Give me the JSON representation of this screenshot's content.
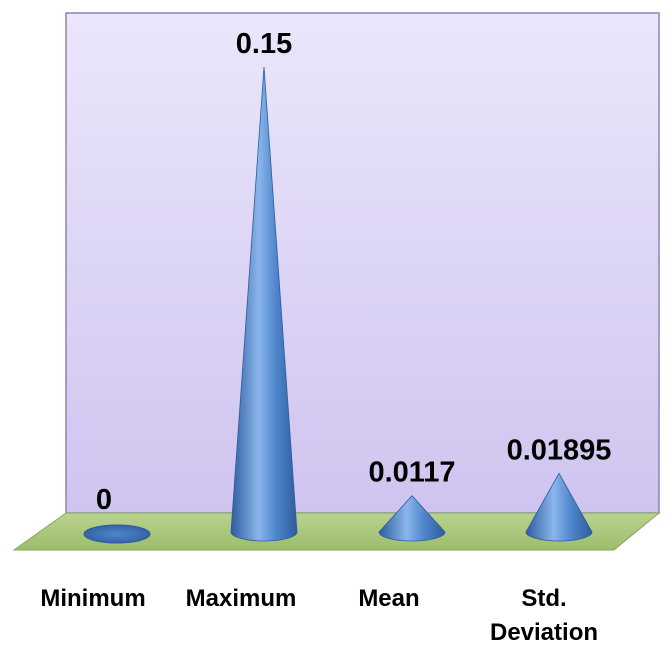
{
  "chart_data": {
    "type": "bar",
    "bar_shape": "cone",
    "categories": [
      "Minimum",
      "Maximum",
      "Mean",
      "Std. Deviation"
    ],
    "category_label_lines": [
      [
        "Minimum"
      ],
      [
        "Maximum"
      ],
      [
        "Mean"
      ],
      [
        "Std.",
        "Deviation"
      ]
    ],
    "values": [
      0,
      0.15,
      0.0117,
      0.01895
    ],
    "value_labels": [
      "0",
      "0.15",
      "0.0117",
      "0.01895"
    ],
    "title": "",
    "xlabel": "",
    "ylabel": "",
    "ylim": [
      0,
      0.15
    ],
    "grid": false,
    "legend": "none",
    "colors": {
      "wall_fill": "#ddd6f4",
      "wall_edge": "#8c84b8",
      "floor_fill": "#a8c57c",
      "floor_edge": "#8aa563",
      "cone_dark": "#2e5c9e",
      "cone_mid": "#4f86cc",
      "cone_light": "#8ab6ec"
    }
  }
}
